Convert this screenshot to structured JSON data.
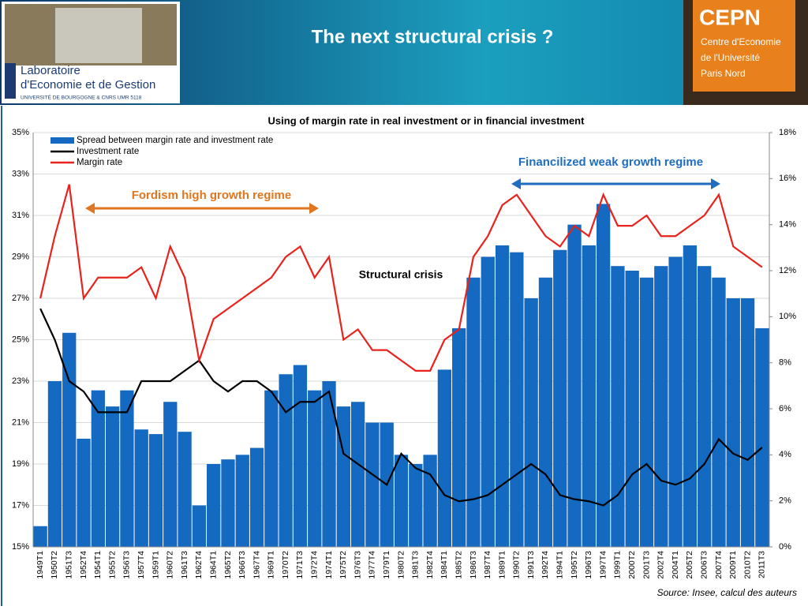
{
  "header": {
    "title": "The next structural crisis ?",
    "left_logo": {
      "line1": "Laboratoire",
      "line2": "d'Economie et de Gestion",
      "line3": "UNIVERSITÉ DE BOURGOGNE & CNRS UMR 5118"
    },
    "right_logo": {
      "name": "CEPN",
      "line1": "Centre d'Economie",
      "line2": "de l'Université",
      "line3": "Paris Nord"
    }
  },
  "chart_data": {
    "type": "bar_line",
    "title": "Using of margin rate in real investment or in financial investment",
    "categories": [
      "1949T1",
      "1950T2",
      "1951T3",
      "1952T4",
      "1954T1",
      "1955T2",
      "1956T3",
      "1957T4",
      "1959T1",
      "1960T2",
      "1961T3",
      "1962T4",
      "1964T1",
      "1965T2",
      "1966T3",
      "1967T4",
      "1969T1",
      "1970T2",
      "1971T3",
      "1972T4",
      "1974T1",
      "1975T2",
      "1976T3",
      "1977T4",
      "1979T1",
      "1980T2",
      "1981T3",
      "1982T4",
      "1984T1",
      "1985T2",
      "1986T3",
      "1987T4",
      "1989T1",
      "1990T2",
      "1991T3",
      "1992T4",
      "1994T1",
      "1995T2",
      "1996T3",
      "1997T4",
      "1999T1",
      "2000T2",
      "2001T3",
      "2002T4",
      "2004T1",
      "2005T2",
      "2006T3",
      "2007T4",
      "2009T1",
      "2010T2",
      "2011T3"
    ],
    "series": [
      {
        "name": "Spread between margin rate and investment rate",
        "color": "#1469c0",
        "kind": "bar",
        "axis": "y2",
        "values": [
          0.9,
          7.2,
          9.3,
          4.7,
          6.8,
          6.1,
          6.8,
          5.1,
          4.9,
          6.3,
          5,
          1.8,
          3.6,
          3.8,
          4,
          4.3,
          6.8,
          7.5,
          7.9,
          6.8,
          7.2,
          6.1,
          6.3,
          5.4,
          5.4,
          4,
          3.6,
          4,
          7.7,
          9.5,
          11.7,
          12.6,
          13.1,
          12.8,
          10.8,
          11.7,
          12.9,
          14,
          13.1,
          14.9,
          12.2,
          12,
          11.7,
          12.2,
          12.6,
          13.1,
          12.2,
          11.7,
          10.8,
          10.8,
          9.5
        ]
      },
      {
        "name": "Investment rate",
        "color": "#000000",
        "kind": "line",
        "values": [
          26.5,
          25,
          23,
          22.5,
          21.5,
          21.5,
          21.5,
          23,
          23,
          23,
          23.5,
          24,
          23,
          22.5,
          23,
          23,
          22.5,
          21.5,
          22,
          22,
          22.5,
          19.5,
          19,
          18.5,
          18,
          19.5,
          18.8,
          18.5,
          17.5,
          17.2,
          17.3,
          17.5,
          18,
          18.5,
          19,
          18.5,
          17.5,
          17.3,
          17.2,
          17,
          17.5,
          18.5,
          19,
          18.2,
          18,
          18.3,
          19,
          20.2,
          19.5,
          19.2,
          19.8
        ]
      },
      {
        "name": "Margin rate",
        "color": "#e8221c",
        "kind": "line",
        "values": [
          27,
          30,
          32.5,
          27,
          28,
          28,
          28,
          28.5,
          27,
          29.5,
          28,
          24,
          26,
          26.5,
          27,
          27.5,
          28,
          29,
          29.5,
          28,
          29,
          25,
          25.5,
          24.5,
          24.5,
          24,
          23.5,
          23.5,
          25,
          25.5,
          29,
          30,
          31.5,
          32,
          31,
          30,
          29.5,
          30.5,
          30,
          32,
          30.5,
          30.5,
          31,
          30,
          30,
          30.5,
          31,
          32,
          29.5,
          29,
          28.5
        ]
      }
    ],
    "ylim": [
      15,
      35
    ],
    "yticks": [
      {
        "value": 15,
        "label": "15%"
      },
      {
        "value": 17,
        "label": "17%"
      },
      {
        "value": 19,
        "label": "19%"
      },
      {
        "value": 21,
        "label": "21%"
      },
      {
        "value": 23,
        "label": "23%"
      },
      {
        "value": 25,
        "label": "25%"
      },
      {
        "value": 27,
        "label": "27%"
      },
      {
        "value": 29,
        "label": "29%"
      },
      {
        "value": 31,
        "label": "31%"
      },
      {
        "value": 33,
        "label": "33%"
      },
      {
        "value": 35,
        "label": "35%"
      }
    ],
    "y2lim": [
      0,
      18
    ],
    "y2ticks": [
      {
        "value": 0,
        "label": "0%"
      },
      {
        "value": 2,
        "label": "2%"
      },
      {
        "value": 4,
        "label": "4%"
      },
      {
        "value": 6,
        "label": "6%"
      },
      {
        "value": 8,
        "label": "8%"
      },
      {
        "value": 10,
        "label": "10%"
      },
      {
        "value": 12,
        "label": "12%"
      },
      {
        "value": 14,
        "label": "14%"
      },
      {
        "value": 16,
        "label": "16%"
      },
      {
        "value": 18,
        "label": "18%"
      }
    ],
    "grid": true,
    "legend": "upper left",
    "annotations": [
      "Fordism high growth regime",
      "Financilized weak growth regime",
      "Structural crisis"
    ],
    "source": "Source: Insee, calcul des auteurs"
  }
}
